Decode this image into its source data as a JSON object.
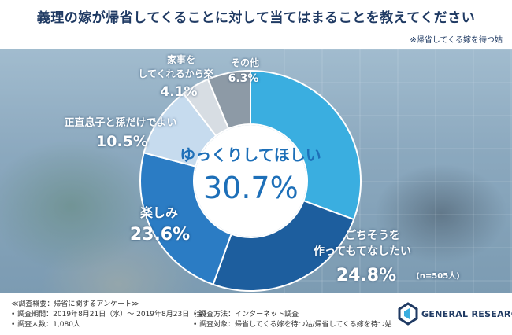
{
  "header": {
    "title": "義理の嫁が帰省してくることに対して当てはまることを教えてください",
    "source": "※帰省してくる嫁を待つ姑"
  },
  "chart_data": {
    "type": "pie",
    "donut": true,
    "categories": [
      "ゆっくりしてほしい",
      "ごちそうを作ってもてなしたい",
      "楽しみ",
      "正直息子と孫だけでよい",
      "家事をしてくれるから楽",
      "その他"
    ],
    "values": [
      30.7,
      24.8,
      23.6,
      10.5,
      4.1,
      6.3
    ],
    "value_labels": [
      "30.7%",
      "24.8%",
      "23.6%",
      "10.5%",
      "4.1%",
      "6.3%"
    ],
    "colors": [
      "#3aaee0",
      "#1d5e9e",
      "#2b7cc4",
      "#c6dbee",
      "#d7dde3",
      "#8d9aa6"
    ],
    "annotation": "(n=505人)"
  },
  "labels": {
    "slice0_name": "ゆっくりしてほしい",
    "slice0_value": "30.7%",
    "slice1_name1": "ごちそうを",
    "slice1_name2": "作ってもてなしたい",
    "slice1_value": "24.8%",
    "slice2_name": "楽しみ",
    "slice2_value": "23.6%",
    "slice3_name": "正直息子と孫だけでよい",
    "slice3_value": "10.5%",
    "slice4_name1": "家事を",
    "slice4_name2": "してくれるから楽",
    "slice4_value": "4.1%",
    "slice5_name": "その他",
    "slice5_value": "6.3%",
    "n": "(n=505人)"
  },
  "footer": {
    "line1": "≪調査概要：帰省に関するアンケート≫",
    "line2": "• 調査期間：2019年8月21日（水）～ 2019年8月23日（金）",
    "line3": "• 調査人数：1,080人",
    "line4": "• 調査方法：インターネット調査",
    "line5": "• 調査対象：帰省してくる嫁を待つ姑/帰省してくる嫁を待つ姑",
    "logo": "GENERAL RESEARCH"
  }
}
